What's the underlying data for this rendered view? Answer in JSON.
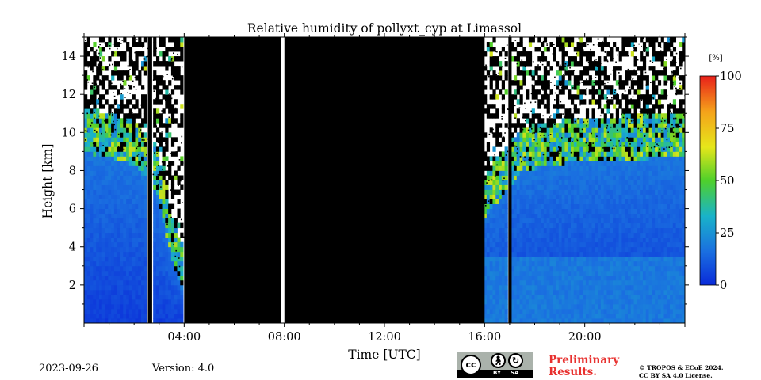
{
  "chart_data": {
    "type": "heatmap",
    "title": "Relative humidity of pollyxt_cyp at Limassol",
    "xlabel": "Time [UTC]",
    "ylabel": "Height [km]",
    "xlim_hours": [
      0,
      24
    ],
    "ylim_km": [
      0,
      15
    ],
    "x_tick_values": [
      4,
      8,
      12,
      16,
      20
    ],
    "x_tick_labels": [
      "04:00",
      "08:00",
      "12:00",
      "16:00",
      "20:00"
    ],
    "y_tick_values": [
      2,
      4,
      6,
      8,
      10,
      12,
      14
    ],
    "y_tick_labels": [
      "2",
      "4",
      "6",
      "8",
      "10",
      "12",
      "14"
    ],
    "colorbar": {
      "unit_label": "[%]",
      "range": [
        0,
        100
      ],
      "tick_values": [
        0,
        25,
        50,
        75,
        100
      ],
      "tick_labels": [
        "0",
        "25",
        "50",
        "75",
        "100"
      ],
      "colormap": [
        "#0a2bd9",
        "#1a6fe0",
        "#19b3c9",
        "#4fd02a",
        "#e6e61a",
        "#f5a21a",
        "#e8201a"
      ]
    },
    "no_data_color": "#000000",
    "no_data_intervals_hours": [
      [
        2.55,
        2.72
      ],
      [
        4.0,
        7.88
      ],
      [
        8.0,
        16.0
      ],
      [
        16.95,
        17.08
      ]
    ],
    "gap_intervals_hours": [
      [
        7.88,
        8.0
      ]
    ],
    "cloud_top_km": [
      {
        "t": 0.0,
        "km": 10.5
      },
      {
        "t": 1.0,
        "km": 10.2
      },
      {
        "t": 2.0,
        "km": 9.8
      },
      {
        "t": 2.9,
        "km": 8.5
      },
      {
        "t": 3.3,
        "km": 6.0
      },
      {
        "t": 3.7,
        "km": 4.0
      },
      {
        "t": 4.0,
        "km": 3.0
      },
      {
        "t": 16.0,
        "km": 7.0
      },
      {
        "t": 17.5,
        "km": 9.5
      },
      {
        "t": 20.0,
        "km": 10.0
      },
      {
        "t": 24.0,
        "km": 10.2
      }
    ]
  },
  "footer": {
    "date": "2023-09-26",
    "version": "Version: 4.0",
    "license_badge": {
      "cc": "cc",
      "by": "BY",
      "sa": "SA"
    },
    "preliminary_line1": "Preliminary",
    "preliminary_line2": "Results.",
    "copyright_line1": "© TROPOS & ECoE 2024.",
    "copyright_line2": "CC BY SA 4.0 License."
  }
}
